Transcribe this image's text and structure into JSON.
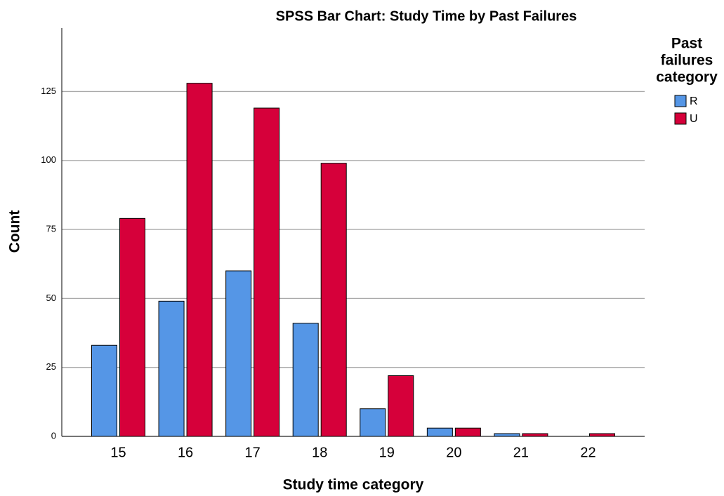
{
  "chart_data": {
    "type": "bar",
    "title": "SPSS Bar Chart: Study Time by Past Failures",
    "x_label": "Study time category",
    "y_label": "Count",
    "legend_title": [
      "Past",
      "failures",
      "category"
    ],
    "categories": [
      "15",
      "16",
      "17",
      "18",
      "19",
      "20",
      "21",
      "22"
    ],
    "series": [
      {
        "name": "R",
        "color": "#5596e6",
        "values": [
          33,
          49,
          60,
          41,
          10,
          3,
          1,
          0
        ]
      },
      {
        "name": "U",
        "color": "#d6003a",
        "values": [
          79,
          128,
          119,
          99,
          22,
          3,
          1,
          1
        ]
      }
    ],
    "ylim": [
      0,
      148
    ],
    "yticks": [
      0,
      25,
      50,
      75,
      100,
      125
    ],
    "grid": true,
    "legend": "right"
  }
}
